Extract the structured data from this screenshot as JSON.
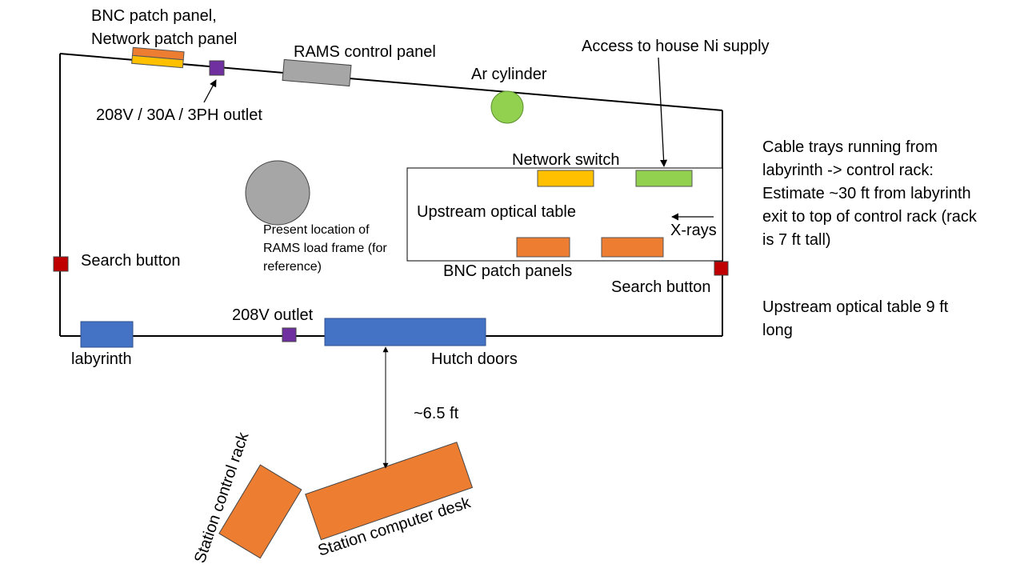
{
  "diagram": {
    "labels": {
      "bnc_network_patch_line1": "BNC patch panel,",
      "bnc_network_patch_line2": "Network patch panel",
      "rams_control_panel": "RAMS control panel",
      "access_ni_supply": "Access to house Ni supply",
      "ar_cylinder": "Ar cylinder",
      "outlet_3ph": "208V / 30A / 3PH outlet",
      "network_switch": "Network switch",
      "upstream_optical_table": "Upstream optical table",
      "xrays": "X-rays",
      "bnc_patch_panels": "BNC patch panels",
      "search_button_left": "Search button",
      "search_button_right": "Search button",
      "load_frame_line1": "Present location of",
      "load_frame_line2": "RAMS load frame (for",
      "load_frame_line3": "reference)",
      "outlet_208v": "208V outlet",
      "labyrinth": "labyrinth",
      "hutch_doors": "Hutch doors",
      "distance": "~6.5 ft",
      "station_control_rack": "Station control rack",
      "station_computer_desk": "Station computer desk"
    },
    "notes": {
      "cable_trays_line1": "Cable trays running from",
      "cable_trays_line2": "labyrinth -> control rack:",
      "cable_trays_line3": "Estimate ~30 ft from labyrinth",
      "cable_trays_line4": "exit to top of control rack (rack",
      "cable_trays_line5": "is 7 ft tall)",
      "table_length_line1": "Upstream optical table 9 ft",
      "table_length_line2": "long"
    },
    "colors": {
      "outline": "#000000",
      "orange": "#ED7D31",
      "yellow": "#FFC000",
      "green": "#92D050",
      "gray": "#A6A6A6",
      "blue": "#4472C4",
      "purple": "#7030A0",
      "red": "#C00000"
    }
  }
}
